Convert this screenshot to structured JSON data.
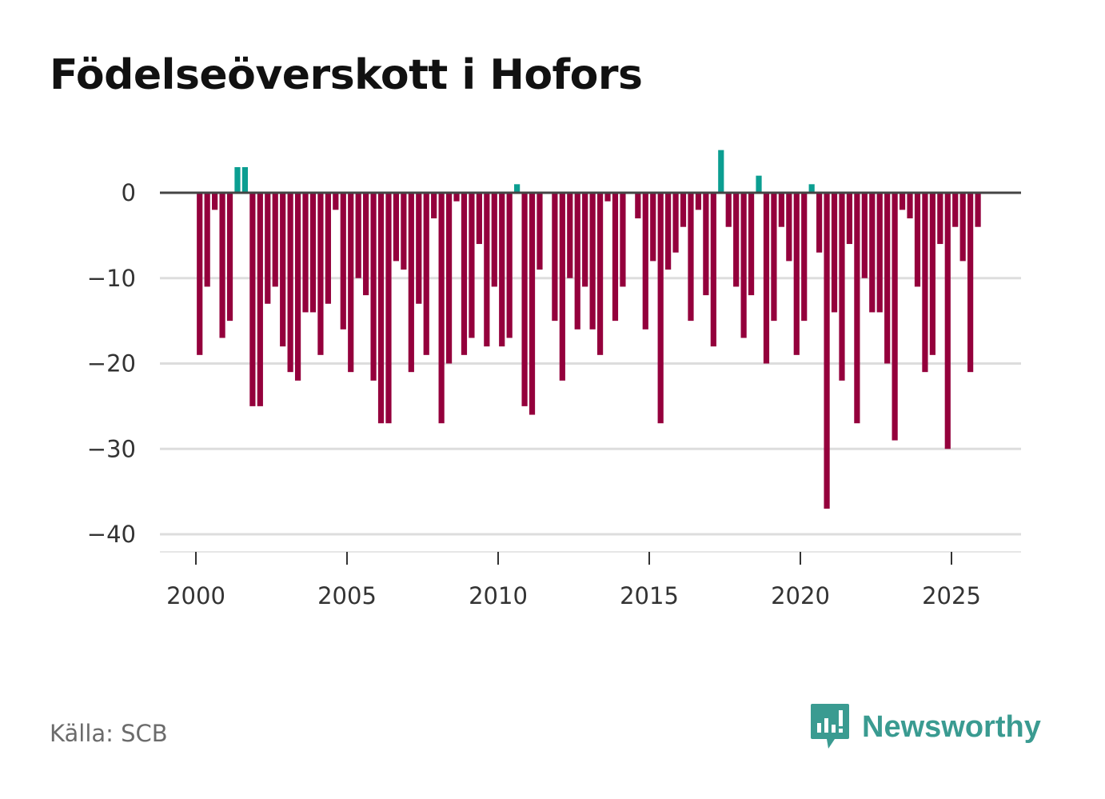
{
  "chart_data": {
    "type": "bar",
    "title": "Födelseöverskott i Hofors",
    "xlabel": "",
    "ylabel": "",
    "ylim": [
      -42,
      6
    ],
    "xlim": [
      1999.2,
      2027.3
    ],
    "yticks": [
      0,
      -10,
      -20,
      -30,
      -40
    ],
    "ytick_labels": [
      "0",
      "−10",
      "−20",
      "−30",
      "−40"
    ],
    "xticks": [
      2000,
      2005,
      2010,
      2015,
      2020,
      2025
    ],
    "xtick_labels": [
      "2000",
      "2005",
      "2010",
      "2015",
      "2020",
      "2025"
    ],
    "grid": true,
    "frequency": "quarterly",
    "start": "2000 Q1",
    "values": [
      -19,
      -11,
      -2,
      -17,
      -15,
      3,
      3,
      -25,
      -25,
      -13,
      -11,
      -18,
      -21,
      -22,
      -14,
      -14,
      -19,
      -13,
      -2,
      -16,
      -21,
      -10,
      -12,
      -22,
      -27,
      -27,
      -8,
      -9,
      -21,
      -13,
      -19,
      -3,
      -27,
      -20,
      -1,
      -19,
      -17,
      -6,
      -18,
      -11,
      -18,
      -17,
      1,
      -25,
      -26,
      -9,
      0,
      -15,
      -22,
      -10,
      -16,
      -11,
      -16,
      -19,
      -1,
      -15,
      -11,
      0,
      -3,
      -16,
      -8,
      -27,
      -9,
      -7,
      -4,
      -15,
      -2,
      -12,
      -18,
      5,
      -4,
      -11,
      -17,
      -12,
      2,
      -20,
      -15,
      -4,
      -8,
      -19,
      -15,
      1,
      -7,
      -37,
      -14,
      -22,
      -6,
      -27,
      -10,
      -14,
      -14,
      -20,
      -29,
      -2,
      -3,
      -11,
      -21,
      -19,
      -6,
      -30,
      -4,
      -8,
      -21,
      -4
    ],
    "colors": {
      "positive": "#0b9e91",
      "negative": "#94003c",
      "zero_line": "#444444",
      "grid": "#dddddd"
    }
  },
  "source": "Källa: SCB",
  "logo": {
    "text": "Newsworthy",
    "color": "#3a9b91"
  }
}
